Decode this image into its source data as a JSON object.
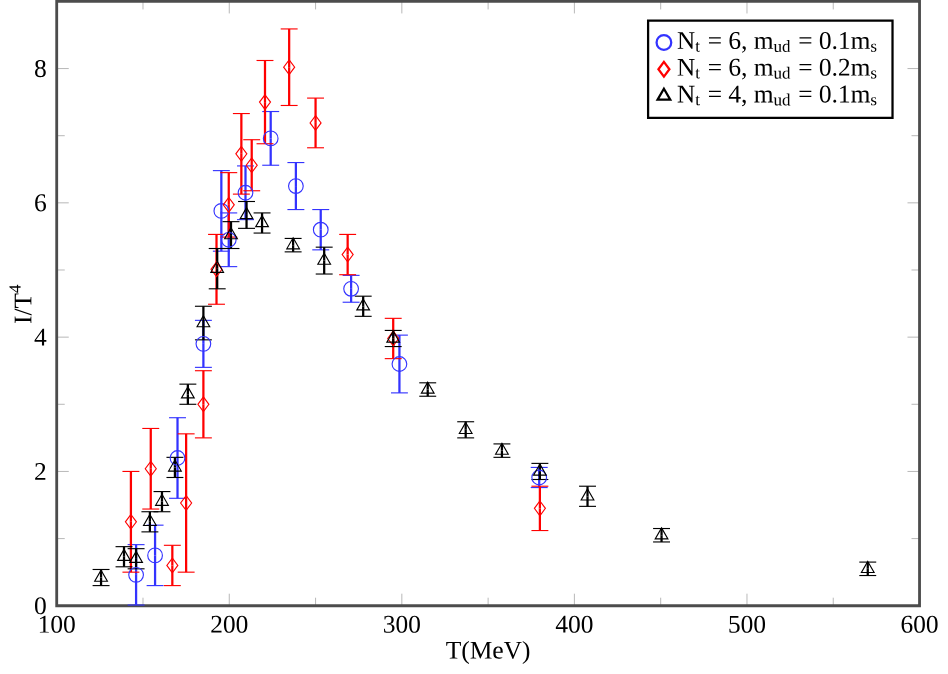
{
  "chart_data": {
    "type": "scatter",
    "xlabel": "T(MeV)",
    "ylabel": "I/T$^{4}$",
    "xlim": [
      100,
      600
    ],
    "ylim": [
      0,
      9
    ],
    "xticks": [
      100,
      200,
      300,
      400,
      500,
      600
    ],
    "yticks": [
      0,
      2,
      4,
      6,
      8
    ],
    "legend": "top right",
    "grid": false,
    "series": [
      {
        "name": "N$_{t}$ = 6, m$_{ud}$ = 0.1m$_{s}$",
        "color": "#3333ff",
        "marker": "circle",
        "x": [
          146,
          157,
          170,
          185,
          195.4,
          199.7,
          209.4,
          224,
          238.6,
          253,
          270.6,
          298.6,
          379.6
        ],
        "values": [
          0.46,
          0.75,
          2.2,
          3.9,
          5.88,
          5.45,
          6.15,
          6.96,
          6.25,
          5.6,
          4.72,
          3.6,
          1.91
        ],
        "errors": [
          0.45,
          0.45,
          0.6,
          0.35,
          0.6,
          0.4,
          0.4,
          0.4,
          0.35,
          0.3,
          0.2,
          0.43,
          0.15
        ]
      },
      {
        "name": "N$_{t}$ = 6, m$_{ud}$ = 0.2m$_{s}$",
        "color": "#ff0000",
        "marker": "diamond",
        "x": [
          143,
          154.5,
          167,
          175,
          185,
          192.6,
          199.7,
          207,
          213,
          220.7,
          234.7,
          250,
          268.6,
          295,
          380
        ],
        "values": [
          1.25,
          2.04,
          0.6,
          1.53,
          3.0,
          5.01,
          5.97,
          6.73,
          6.56,
          7.5,
          8.02,
          7.19,
          5.23,
          3.98,
          1.45
        ],
        "errors": [
          0.75,
          0.6,
          0.3,
          1.03,
          0.5,
          0.52,
          0.48,
          0.6,
          0.38,
          0.62,
          0.57,
          0.37,
          0.3,
          0.3,
          0.33
        ]
      },
      {
        "name": "N$_{t}$ = 4, m$_{ud}$ = 0.1m$_{s}$",
        "color": "#000000",
        "marker": "triangle",
        "x": [
          125.7,
          139,
          146,
          154,
          161,
          168.5,
          176,
          185,
          193,
          201,
          210,
          219,
          237,
          255,
          277.6,
          295,
          315,
          337,
          358,
          380,
          407.6,
          450.5,
          570
        ],
        "values": [
          0.42,
          0.73,
          0.7,
          1.25,
          1.55,
          2.06,
          3.15,
          4.21,
          5.02,
          5.52,
          5.82,
          5.7,
          5.37,
          5.14,
          4.46,
          3.98,
          3.22,
          2.62,
          2.31,
          2.0,
          1.63,
          1.05,
          0.55
        ],
        "errors": [
          0.12,
          0.15,
          0.15,
          0.15,
          0.15,
          0.15,
          0.15,
          0.25,
          0.3,
          0.2,
          0.2,
          0.15,
          0.1,
          0.2,
          0.15,
          0.12,
          0.1,
          0.12,
          0.1,
          0.12,
          0.15,
          0.1,
          0.1
        ]
      }
    ]
  }
}
